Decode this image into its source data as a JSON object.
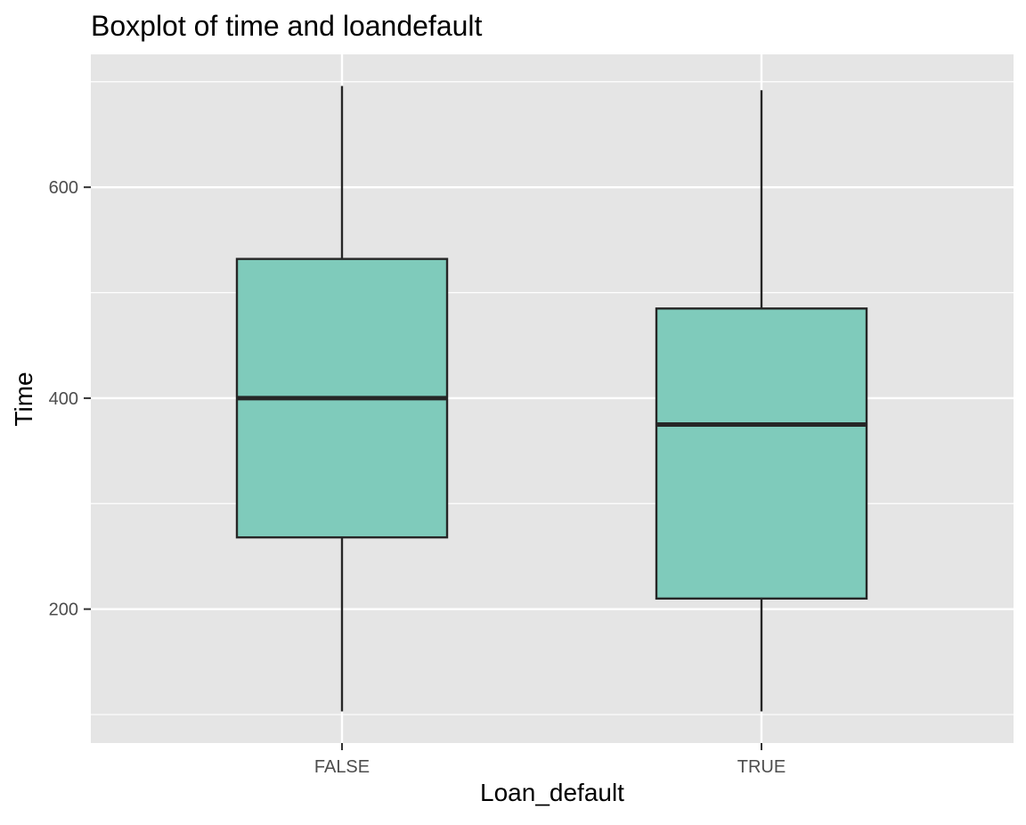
{
  "chart_data": {
    "type": "boxplot",
    "title": "Boxplot of time and loandefault",
    "xlabel": "Loan_default",
    "ylabel": "Time",
    "categories": [
      "FALSE",
      "TRUE"
    ],
    "boxes": [
      {
        "category": "FALSE",
        "whisker_low": 103,
        "q1": 268,
        "median": 400,
        "q3": 532,
        "whisker_high": 696
      },
      {
        "category": "TRUE",
        "whisker_low": 103,
        "q1": 210,
        "median": 375,
        "q3": 485,
        "whisker_high": 692
      }
    ],
    "ylim": [
      73,
      726
    ],
    "yticks": [
      200,
      400,
      600
    ],
    "y_minor_gridlines": [
      100,
      300,
      500,
      700
    ],
    "grid": true,
    "legend": "none",
    "colors": {
      "panel_background": "#E5E5E5",
      "gridline": "#FFFFFF",
      "box_fill": "#7FCBBB",
      "box_outline": "#262626",
      "tick_label": "#4D4D4D",
      "axis_title": "#000000"
    }
  }
}
